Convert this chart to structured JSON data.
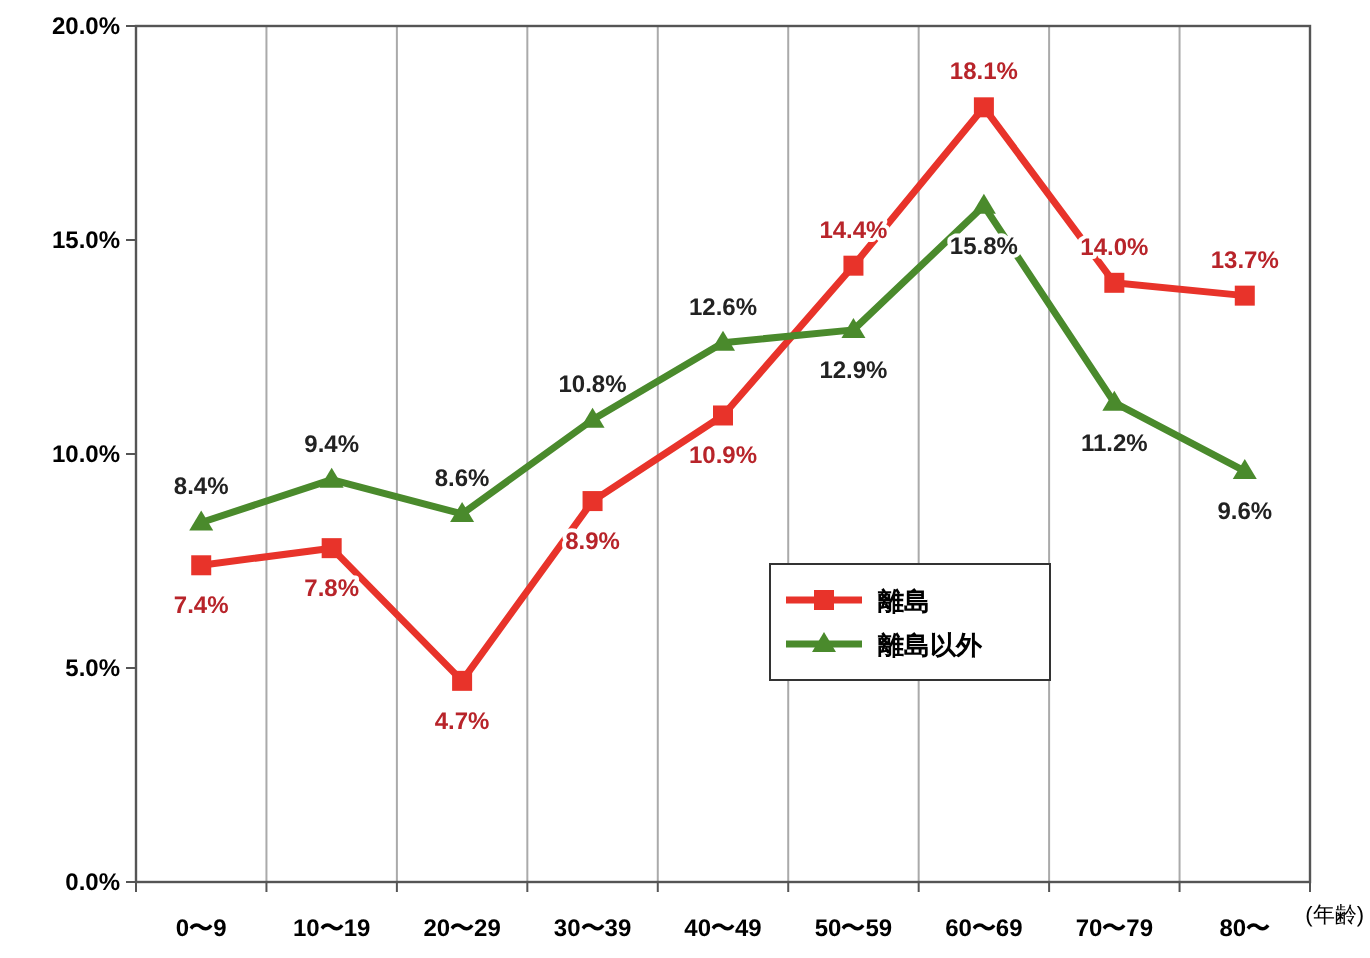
{
  "chart_data": {
    "type": "line",
    "categories": [
      "0〜9",
      "10〜19",
      "20〜29",
      "30〜39",
      "40〜49",
      "50〜59",
      "60〜69",
      "70〜79",
      "80〜"
    ],
    "xlabel": "(年齢)",
    "ylim": [
      0,
      20
    ],
    "yticks": [
      {
        "value": 0,
        "label": "0.0%"
      },
      {
        "value": 5,
        "label": "5.0%"
      },
      {
        "value": 10,
        "label": "10.0%"
      },
      {
        "value": 15,
        "label": "15.0%"
      },
      {
        "value": 20,
        "label": "20.0%"
      }
    ],
    "series": [
      {
        "name": "離島",
        "color": "#e8332a",
        "marker": "square",
        "values": [
          7.4,
          7.8,
          4.7,
          8.9,
          10.9,
          14.4,
          18.1,
          14.0,
          13.7
        ],
        "value_labels": [
          "7.4%",
          "7.8%",
          "4.7%",
          "8.9%",
          "10.9%",
          "14.4%",
          "18.1%",
          "14.0%",
          "13.7%"
        ]
      },
      {
        "name": "離島以外",
        "color": "#4a8a2c",
        "marker": "triangle",
        "values": [
          8.4,
          9.4,
          8.6,
          10.8,
          12.6,
          12.9,
          15.8,
          11.2,
          9.6
        ],
        "value_labels": [
          "8.4%",
          "9.4%",
          "8.6%",
          "10.8%",
          "12.6%",
          "12.9%",
          "15.8%",
          "11.2%",
          "9.6%"
        ]
      }
    ],
    "grid": "x",
    "legend": "right",
    "line_style": "solid"
  }
}
